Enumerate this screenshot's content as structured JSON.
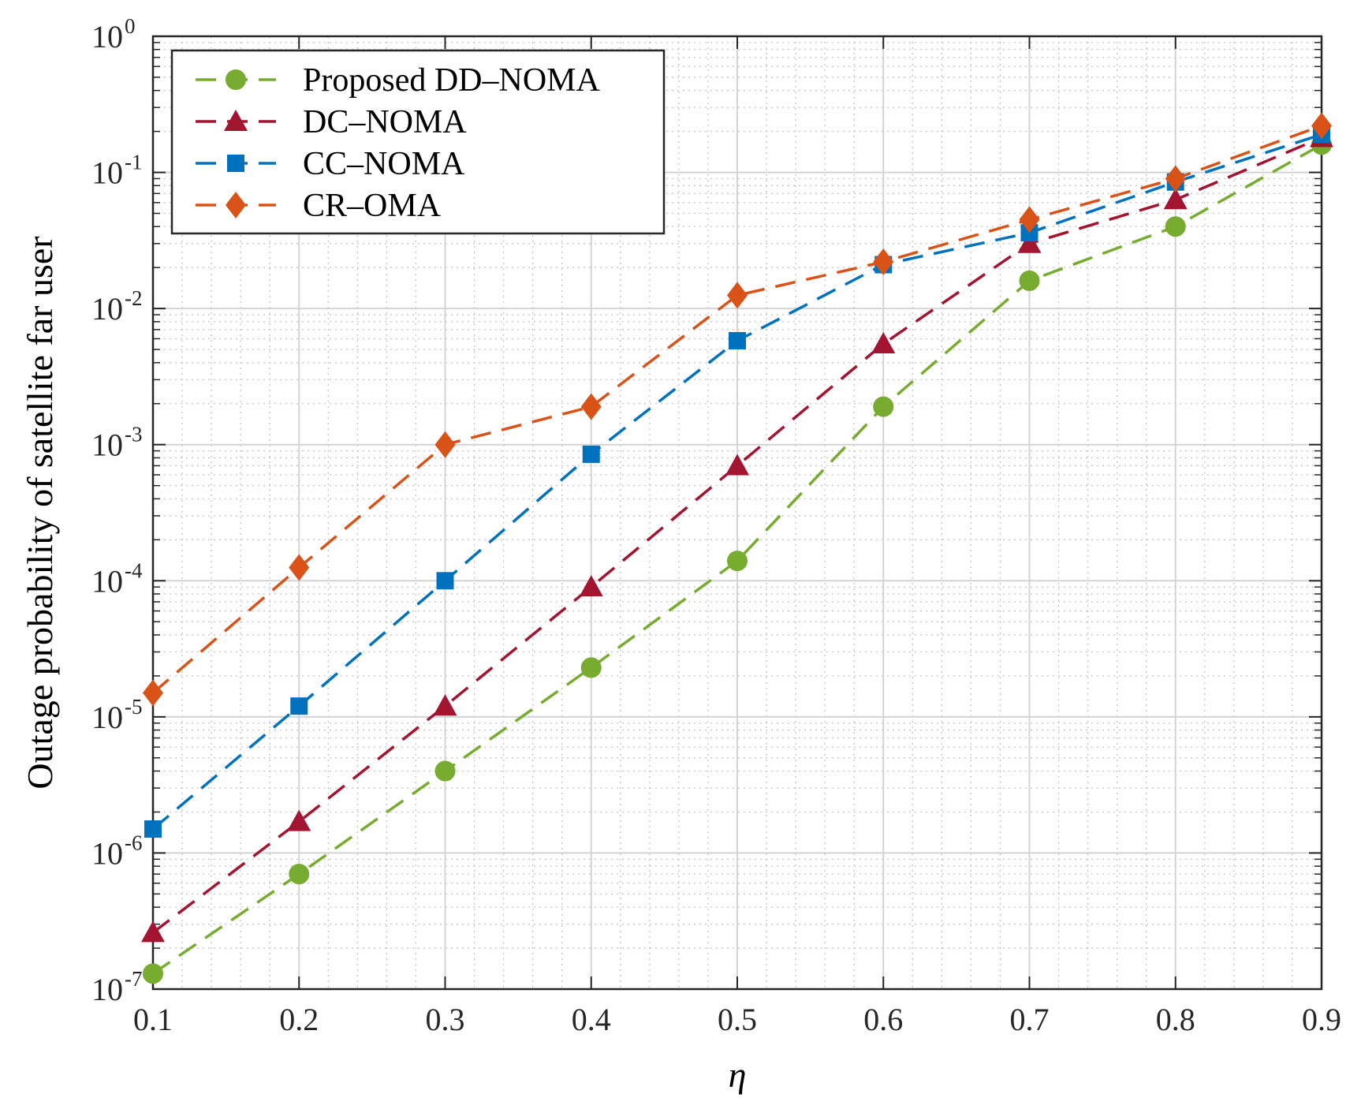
{
  "chart_data": {
    "type": "line",
    "title": "",
    "xlabel": "η",
    "ylabel": "Outage probability of satellite far user",
    "yscale": "log",
    "xlim": [
      0.1,
      0.9
    ],
    "ylim": [
      1e-07,
      1
    ],
    "grid": true,
    "minor_grid": true,
    "legend_position": "top-left",
    "x": [
      0.1,
      0.2,
      0.3,
      0.4,
      0.5,
      0.6,
      0.7,
      0.8,
      0.9
    ],
    "x_tick_labels": [
      "0.1",
      "0.2",
      "0.3",
      "0.4",
      "0.5",
      "0.6",
      "0.7",
      "0.8",
      "0.9"
    ],
    "y_ticks": [
      {
        "value": 1,
        "base": "10",
        "exp": "0"
      },
      {
        "value": 0.1,
        "base": "10",
        "exp": "-1"
      },
      {
        "value": 0.01,
        "base": "10",
        "exp": "-2"
      },
      {
        "value": 0.001,
        "base": "10",
        "exp": "-3"
      },
      {
        "value": 0.0001,
        "base": "10",
        "exp": "-4"
      },
      {
        "value": 1e-05,
        "base": "10",
        "exp": "-5"
      },
      {
        "value": 1e-06,
        "base": "10",
        "exp": "-6"
      },
      {
        "value": 1e-07,
        "base": "10",
        "exp": "-7"
      }
    ],
    "series": [
      {
        "name": "Proposed DD–NOMA",
        "color": "#77AC30",
        "marker": "circle",
        "values": [
          1.3e-07,
          7e-07,
          4e-06,
          2.3e-05,
          0.00014,
          0.0019,
          0.016,
          0.04,
          0.16
        ]
      },
      {
        "name": "DC–NOMA",
        "color": "#A2142F",
        "marker": "triangle",
        "values": [
          2.6e-07,
          1.7e-06,
          1.2e-05,
          9e-05,
          0.0007,
          0.0055,
          0.03,
          0.063,
          0.18
        ]
      },
      {
        "name": "CC–NOMA",
        "color": "#0072BD",
        "marker": "square",
        "values": [
          1.5e-06,
          1.2e-05,
          0.0001,
          0.00085,
          0.0058,
          0.021,
          0.036,
          0.085,
          0.19
        ]
      },
      {
        "name": "CR–OMA",
        "color": "#D95319",
        "marker": "diamond",
        "values": [
          1.5e-05,
          0.000125,
          0.001,
          0.0019,
          0.0125,
          0.022,
          0.045,
          0.09,
          0.22
        ]
      }
    ]
  }
}
